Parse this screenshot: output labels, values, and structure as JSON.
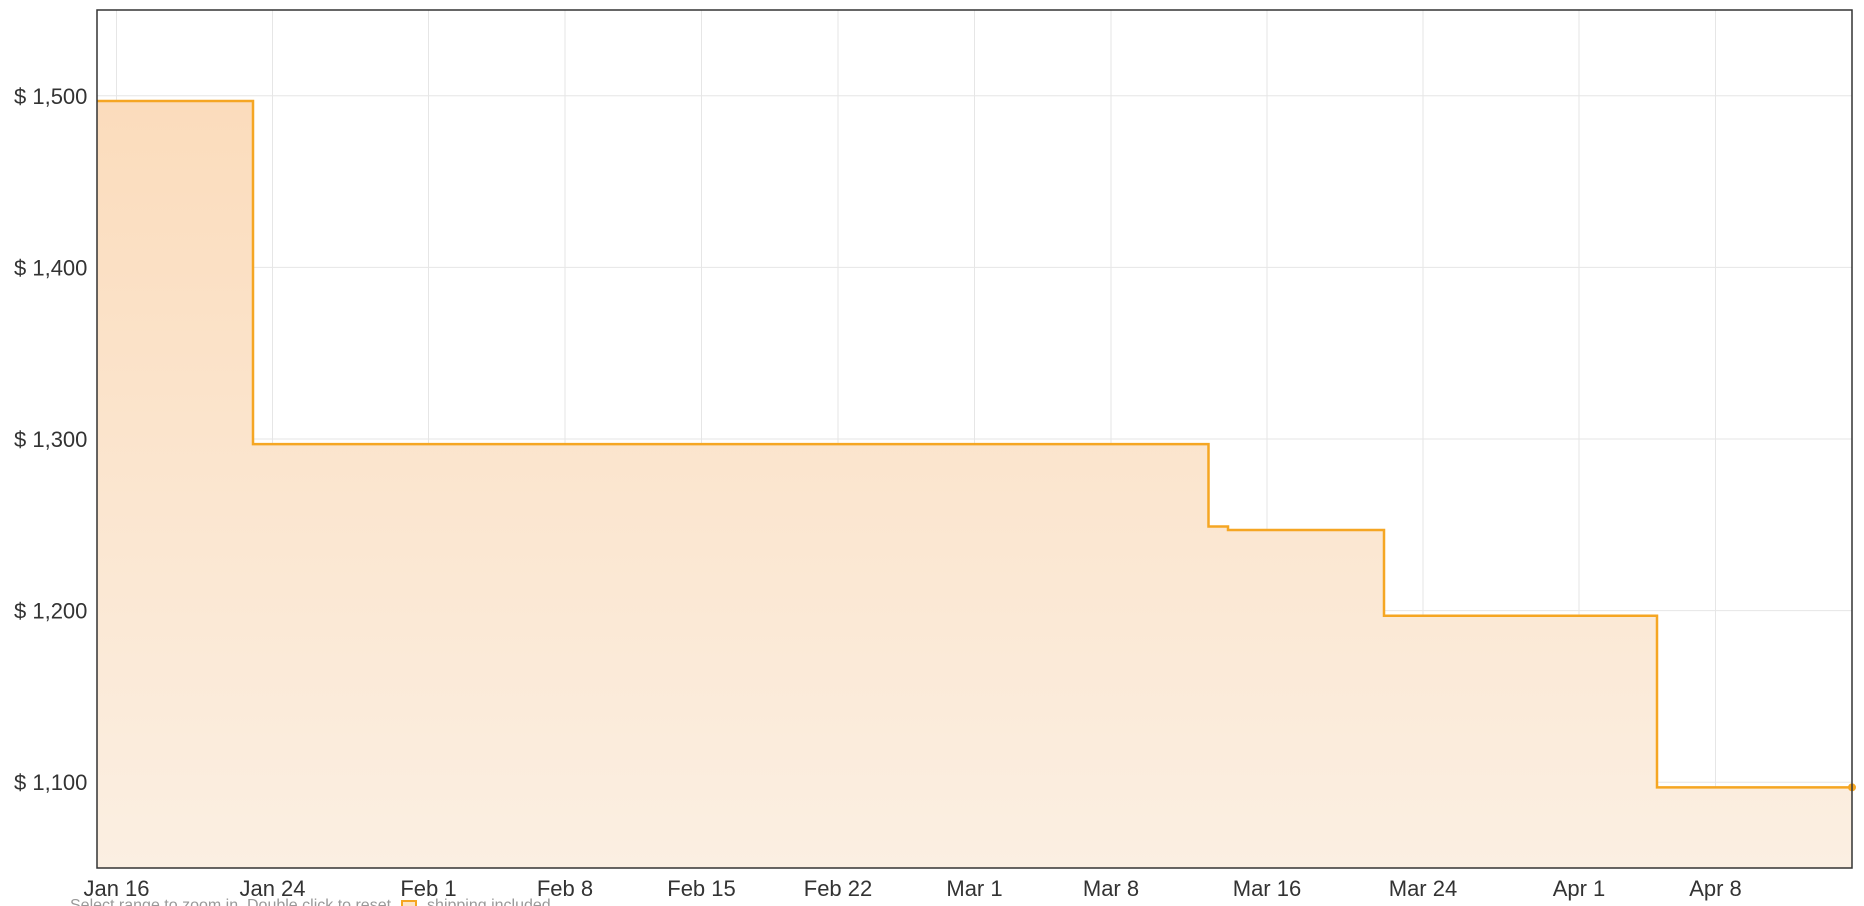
{
  "chart_data": {
    "type": "area",
    "title": "",
    "xlabel": "",
    "ylabel": "",
    "x_tick_labels": [
      "Jan 16",
      "Jan 24",
      "Feb 1",
      "Feb 8",
      "Feb 15",
      "Feb 22",
      "Mar 1",
      "Mar 8",
      "Mar 16",
      "Mar 24",
      "Apr 1",
      "Apr 8"
    ],
    "y_tick_labels": [
      "$ 1,100",
      "$ 1,200",
      "$ 1,300",
      "$ 1,400",
      "$ 1,500"
    ],
    "y_ticks": [
      1100,
      1200,
      1300,
      1400,
      1500
    ],
    "ylim": [
      1050,
      1550
    ],
    "xlim": [
      "2023-01-15",
      "2023-04-15"
    ],
    "step": "after",
    "grid": true,
    "series": [
      {
        "points": [
          {
            "x": "2023-01-15",
            "y": 1497
          },
          {
            "x": "2023-01-23",
            "y": 1297
          },
          {
            "x": "2023-03-13",
            "y": 1249
          },
          {
            "x": "2023-03-14",
            "y": 1247
          },
          {
            "x": "2023-03-22",
            "y": 1197
          },
          {
            "x": "2023-04-05",
            "y": 1097
          },
          {
            "x": "2023-04-15",
            "y": 1097
          }
        ],
        "color": "#f5a623",
        "fill": "#fbe3c7"
      }
    ]
  },
  "footer": {
    "hint": "Select range to zoom in. Double click to reset",
    "legend_label": "shipping included"
  }
}
